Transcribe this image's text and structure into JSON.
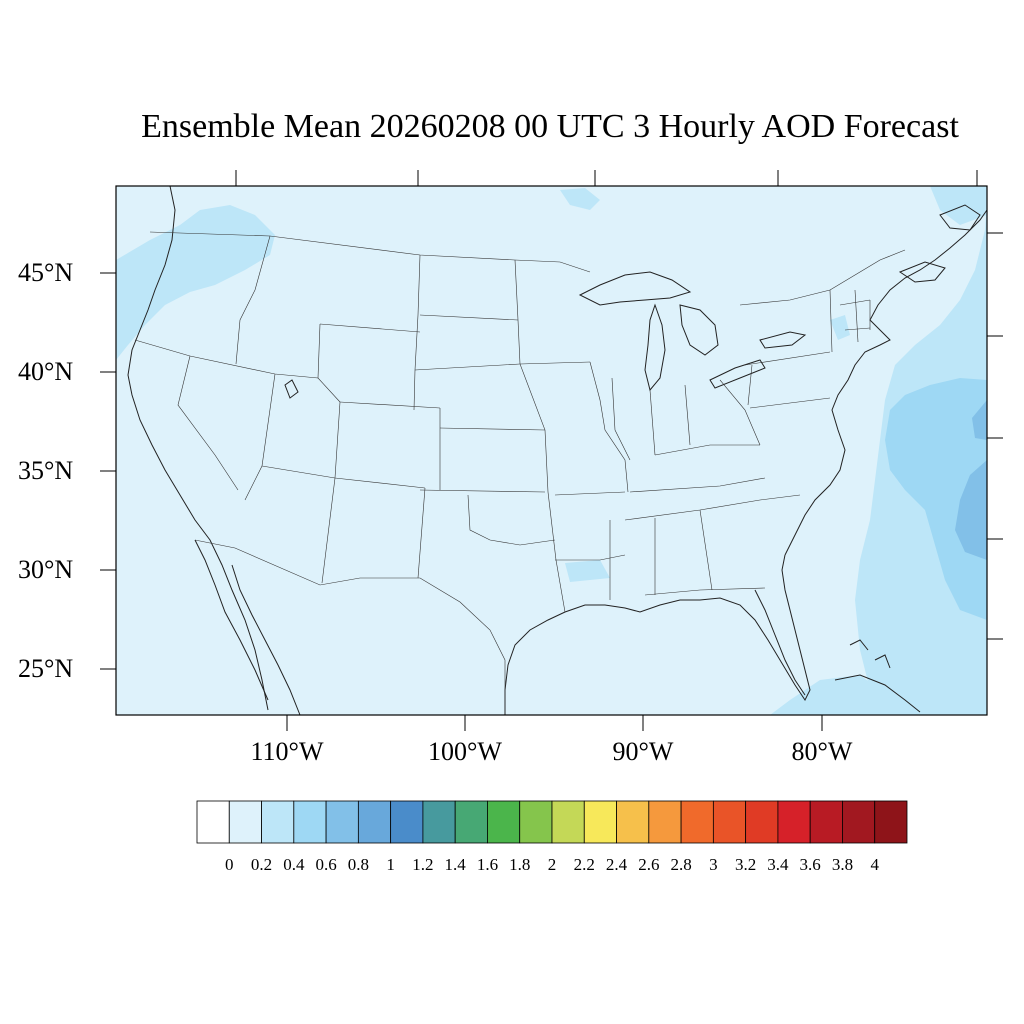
{
  "title": "Ensemble Mean 20260208 00 UTC 3 Hourly AOD Forecast",
  "lat_labels": [
    "45°N",
    "40°N",
    "35°N",
    "30°N",
    "25°N"
  ],
  "lon_labels": [
    "110°W",
    "100°W",
    "90°W",
    "80°W"
  ],
  "colorbar": {
    "labels": [
      "0",
      "0.2",
      "0.4",
      "0.6",
      "0.8",
      "1",
      "1.2",
      "1.4",
      "1.6",
      "1.8",
      "2",
      "2.2",
      "2.4",
      "2.6",
      "2.8",
      "3",
      "3.2",
      "3.4",
      "3.6",
      "3.8",
      "4"
    ],
    "colors": [
      "#ffffff",
      "#def2fb",
      "#bde6f8",
      "#9ed8f4",
      "#82c0e8",
      "#68a8db",
      "#4a8cca",
      "#479a9e",
      "#47a874",
      "#4bb54b",
      "#85c54c",
      "#c4d857",
      "#f7e85a",
      "#f6c04b",
      "#f5993d",
      "#f06a2b",
      "#e95428",
      "#e03b25",
      "#d62129",
      "#b81b24",
      "#a11820",
      "#8e1419"
    ]
  },
  "map": {
    "background_color": "#def2fb",
    "higher_aod_color": "#bde6f8",
    "highest_aod_color": "#9ed8f4",
    "border_color": "#222222"
  }
}
